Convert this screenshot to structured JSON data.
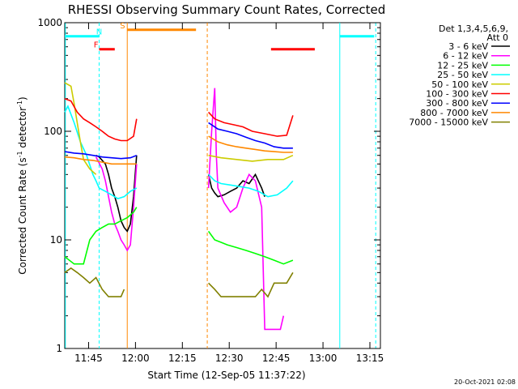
{
  "chart_data": {
    "type": "line",
    "title": "RHESSI Observing Summary Count Rates, Corrected",
    "xlabel": "Start Time (12-Sep-05 11:37:22)",
    "ylabel_main": "Corrected Count Rate (s",
    "ylabel_sup1": "-1",
    "ylabel_mid": " detector",
    "ylabel_sup2": "-1",
    "ylabel_end": ")",
    "y_scale": "log",
    "ylim": [
      1,
      1000
    ],
    "xlim_minutes": [
      0,
      101
    ],
    "x_ticks": [
      {
        "label": "11:45",
        "m": 7.63
      },
      {
        "label": "12:00",
        "m": 22.63
      },
      {
        "label": "12:15",
        "m": 37.63
      },
      {
        "label": "12:30",
        "m": 52.63
      },
      {
        "label": "12:45",
        "m": 67.63
      },
      {
        "label": "13:00",
        "m": 82.63
      },
      {
        "label": "13:15",
        "m": 97.63
      }
    ],
    "y_ticks": [
      {
        "label": "1000",
        "v": 1000
      },
      {
        "label": "100",
        "v": 100
      },
      {
        "label": "10",
        "v": 10
      },
      {
        "label": "1",
        "v": 1
      }
    ],
    "legend_header": [
      "Det 1,3,4,5,6,9,",
      "Att 0"
    ],
    "legend_position": "right",
    "series": [
      {
        "name": "3 - 6 keV",
        "color": "#000000",
        "segments": [
          [
            [
              10,
              60
            ],
            [
              11,
              58
            ],
            [
              13,
              50
            ],
            [
              14,
              40
            ],
            [
              15,
              30
            ],
            [
              16,
              25
            ],
            [
              17,
              20
            ],
            [
              18,
              15
            ],
            [
              19,
              13
            ],
            [
              20,
              12
            ],
            [
              21,
              14
            ],
            [
              22,
              25
            ],
            [
              23,
              60
            ]
          ],
          [
            [
              46,
              40
            ],
            [
              47,
              30
            ],
            [
              48,
              27
            ],
            [
              49,
              25
            ],
            [
              51,
              26
            ],
            [
              53,
              28
            ],
            [
              55,
              30
            ],
            [
              57,
              35
            ],
            [
              59,
              33
            ],
            [
              61,
              40
            ],
            [
              63,
              30
            ],
            [
              64,
              25
            ]
          ]
        ]
      },
      {
        "name": "6 - 12 keV",
        "color": "#ff00ff",
        "segments": [
          [
            [
              10,
              58
            ],
            [
              12,
              45
            ],
            [
              13,
              35
            ],
            [
              14,
              25
            ],
            [
              15,
              18
            ],
            [
              16,
              14
            ],
            [
              17,
              12
            ],
            [
              18,
              10
            ],
            [
              19,
              9
            ],
            [
              20,
              8
            ],
            [
              21,
              9
            ],
            [
              22,
              20
            ],
            [
              23,
              50
            ]
          ],
          [
            [
              46,
              30
            ],
            [
              47,
              100
            ],
            [
              48,
              250
            ],
            [
              48.5,
              60
            ],
            [
              49,
              30
            ],
            [
              51,
              22
            ],
            [
              53,
              18
            ],
            [
              55,
              20
            ],
            [
              57,
              30
            ],
            [
              59,
              40
            ],
            [
              61,
              35
            ],
            [
              63,
              20
            ],
            [
              64,
              1.5
            ],
            [
              69,
              1.5
            ],
            [
              70,
              2
            ]
          ]
        ]
      },
      {
        "name": "12 - 25 keV",
        "color": "#00ff00",
        "segments": [
          [
            [
              0,
              7
            ],
            [
              3,
              6
            ],
            [
              6,
              6
            ],
            [
              8,
              10
            ],
            [
              10,
              12
            ],
            [
              12,
              13
            ],
            [
              14,
              14
            ],
            [
              16,
              14
            ],
            [
              18,
              15
            ],
            [
              20,
              16
            ],
            [
              22,
              18
            ],
            [
              23,
              20
            ]
          ],
          [
            [
              46,
              12
            ],
            [
              48,
              10
            ],
            [
              50,
              9.5
            ],
            [
              52,
              9
            ],
            [
              55,
              8.5
            ],
            [
              58,
              8
            ],
            [
              61,
              7.5
            ],
            [
              64,
              7
            ],
            [
              67,
              6.5
            ],
            [
              70,
              6
            ],
            [
              73,
              6.5
            ]
          ]
        ]
      },
      {
        "name": "25 - 50 keV",
        "color": "#00ffff",
        "segments": [
          [
            [
              0,
              150
            ],
            [
              1,
              170
            ],
            [
              3,
              120
            ],
            [
              5,
              80
            ],
            [
              7,
              60
            ],
            [
              9,
              40
            ],
            [
              10,
              35
            ],
            [
              11,
              30
            ],
            [
              13,
              28
            ],
            [
              15,
              26
            ],
            [
              17,
              24
            ],
            [
              19,
              25
            ],
            [
              21,
              28
            ],
            [
              23,
              30
            ]
          ],
          [
            [
              46,
              40
            ],
            [
              48,
              35
            ],
            [
              50,
              33
            ],
            [
              53,
              32
            ],
            [
              56,
              31
            ],
            [
              59,
              30
            ],
            [
              62,
              28
            ],
            [
              65,
              25
            ],
            [
              68,
              26
            ],
            [
              71,
              30
            ],
            [
              73,
              35
            ]
          ]
        ]
      },
      {
        "name": "50 - 100 keV",
        "color": "#cccc00",
        "segments": [
          [
            [
              0,
              280
            ],
            [
              2,
              260
            ],
            [
              3,
              180
            ],
            [
              4,
              120
            ],
            [
              5,
              80
            ],
            [
              6,
              55
            ],
            [
              8,
              45
            ],
            [
              10,
              40
            ]
          ],
          [
            [
              46,
              60
            ],
            [
              50,
              57
            ],
            [
              55,
              55
            ],
            [
              60,
              53
            ],
            [
              65,
              55
            ],
            [
              70,
              55
            ],
            [
              73,
              60
            ]
          ]
        ]
      },
      {
        "name": "100 - 300 keV",
        "color": "#ff0000",
        "segments": [
          [
            [
              0,
              200
            ],
            [
              2,
              190
            ],
            [
              4,
              150
            ],
            [
              6,
              130
            ],
            [
              8,
              120
            ],
            [
              10,
              110
            ],
            [
              12,
              100
            ],
            [
              14,
              90
            ],
            [
              16,
              85
            ],
            [
              18,
              82
            ],
            [
              20,
              82
            ],
            [
              22,
              90
            ],
            [
              23,
              130
            ]
          ],
          [
            [
              46,
              150
            ],
            [
              48,
              130
            ],
            [
              51,
              120
            ],
            [
              54,
              115
            ],
            [
              57,
              110
            ],
            [
              60,
              100
            ],
            [
              64,
              95
            ],
            [
              68,
              90
            ],
            [
              71,
              92
            ],
            [
              73,
              140
            ]
          ]
        ]
      },
      {
        "name": "300 - 800 keV",
        "color": "#0000ff",
        "segments": [
          [
            [
              0,
              65
            ],
            [
              3,
              63
            ],
            [
              6,
              62
            ],
            [
              9,
              60
            ],
            [
              12,
              58
            ],
            [
              15,
              57
            ],
            [
              18,
              56
            ],
            [
              21,
              57
            ],
            [
              23,
              60
            ]
          ],
          [
            [
              46,
              120
            ],
            [
              49,
              105
            ],
            [
              52,
              100
            ],
            [
              55,
              95
            ],
            [
              58,
              88
            ],
            [
              61,
              82
            ],
            [
              64,
              78
            ],
            [
              67,
              72
            ],
            [
              70,
              70
            ],
            [
              73,
              70
            ]
          ]
        ]
      },
      {
        "name": "800 - 7000 keV",
        "color": "#ff8800",
        "segments": [
          [
            [
              0,
              58
            ],
            [
              3,
              57
            ],
            [
              6,
              55
            ],
            [
              9,
              54
            ],
            [
              12,
              52
            ],
            [
              15,
              50
            ],
            [
              18,
              50
            ],
            [
              21,
              50
            ],
            [
              23,
              50
            ]
          ],
          [
            [
              46,
              90
            ],
            [
              49,
              80
            ],
            [
              52,
              75
            ],
            [
              55,
              72
            ],
            [
              58,
              70
            ],
            [
              61,
              68
            ],
            [
              64,
              66
            ],
            [
              67,
              65
            ],
            [
              70,
              64
            ],
            [
              73,
              64
            ]
          ]
        ]
      },
      {
        "name": "7000 - 15000 keV",
        "color": "#808000",
        "segments": [
          [
            [
              0,
              5
            ],
            [
              2,
              5.5
            ],
            [
              4,
              5
            ],
            [
              6,
              4.5
            ],
            [
              8,
              4
            ],
            [
              10,
              4.5
            ],
            [
              12,
              3.5
            ],
            [
              14,
              3
            ],
            [
              16,
              3
            ],
            [
              18,
              3
            ],
            [
              19,
              3.5
            ]
          ],
          [
            [
              46,
              4
            ],
            [
              48,
              3.5
            ],
            [
              50,
              3
            ],
            [
              52,
              3
            ],
            [
              55,
              3
            ],
            [
              58,
              3
            ],
            [
              61,
              3
            ],
            [
              63,
              3.5
            ],
            [
              65,
              3
            ],
            [
              67,
              4
            ],
            [
              69,
              4
            ],
            [
              71,
              4
            ],
            [
              73,
              5
            ]
          ]
        ]
      }
    ],
    "flags": [
      {
        "label": "N",
        "color": "#00ffff",
        "m": 11,
        "bars": [
          [
            0,
            11
          ],
          [
            88,
            99
          ]
        ],
        "y": 750
      },
      {
        "label": "F",
        "color": "#ff0000",
        "m": 10,
        "bars": [
          [
            11,
            16
          ],
          [
            66,
            80
          ]
        ],
        "y": 570
      },
      {
        "label": "S",
        "color": "#ff8800",
        "m": 18.5,
        "bars": [
          [
            20,
            42
          ]
        ],
        "y": 860
      }
    ],
    "vlines": [
      {
        "m": 0.2,
        "color": "#00ffff",
        "dash": false
      },
      {
        "m": 11,
        "color": "#00ffff",
        "dash": true
      },
      {
        "m": 20,
        "color": "#ff8800",
        "dash": false
      },
      {
        "m": 45.6,
        "color": "#ff8800",
        "dash": true
      },
      {
        "m": 88,
        "color": "#00ffff",
        "dash": false
      },
      {
        "m": 99.5,
        "color": "#00ffff",
        "dash": true
      }
    ],
    "timestamp": "20-Oct-2021 02:08"
  }
}
